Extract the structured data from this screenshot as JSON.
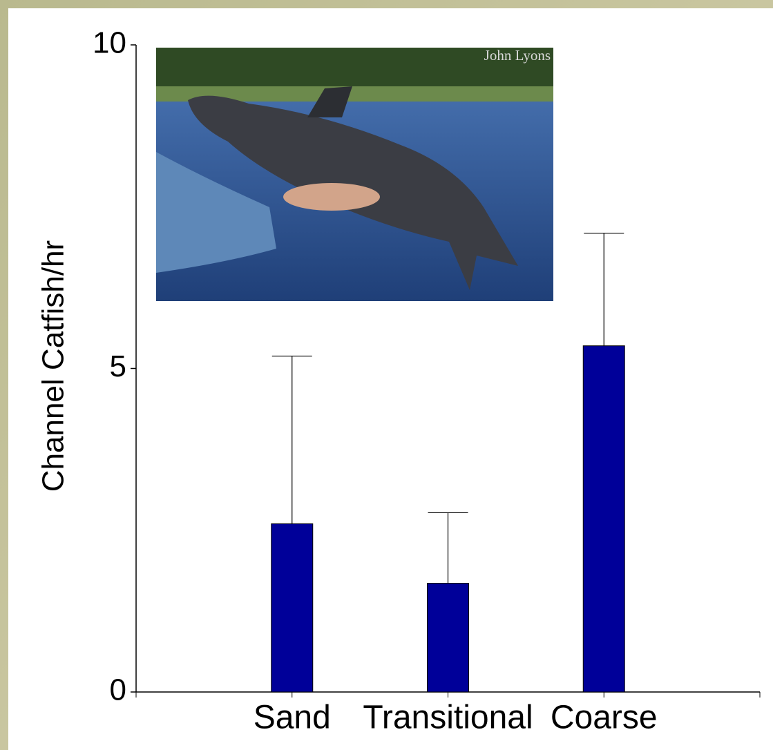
{
  "chart_data": {
    "type": "bar",
    "y_label": "Channel Catfish/hr",
    "categories": [
      "Sand",
      "Transitional",
      "Coarse"
    ],
    "values": [
      2.6,
      1.68,
      5.35
    ],
    "errors": [
      2.59,
      1.09,
      1.74
    ],
    "color": "#000099",
    "ylim": [
      0,
      10
    ],
    "yticks": [
      0,
      5,
      10
    ],
    "photo_credit": "John Lyons"
  }
}
